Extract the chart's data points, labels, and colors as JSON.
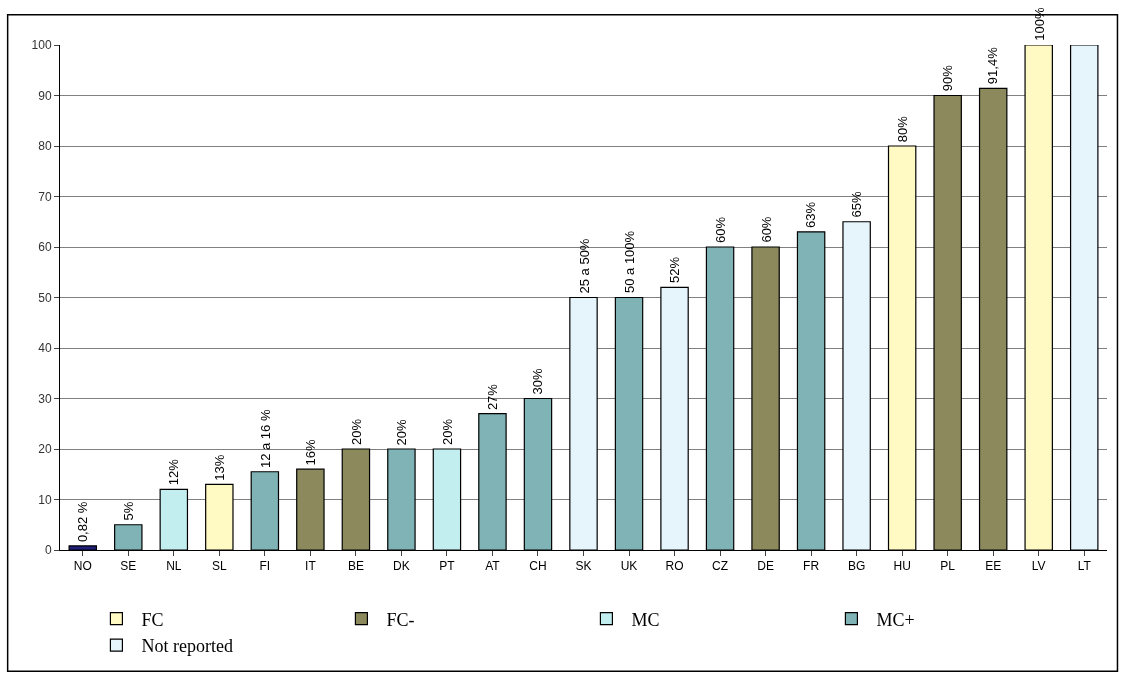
{
  "chart_data": {
    "type": "bar",
    "categories": [
      "NO",
      "SE",
      "NL",
      "SL",
      "FI",
      "IT",
      "BE",
      "DK",
      "PT",
      "AT",
      "CH",
      "SK",
      "UK",
      "RO",
      "CZ",
      "DE",
      "FR",
      "BG",
      "HU",
      "PL",
      "EE",
      "LV",
      "LT"
    ],
    "series": [
      {
        "color": "#1f1f7a",
        "values": [
          0.82,
          null,
          null,
          null,
          null,
          null,
          null,
          null,
          null,
          null,
          null,
          null,
          null,
          null,
          null,
          null,
          null,
          null,
          null,
          null,
          null,
          null,
          null
        ],
        "value_labels": [
          "0,82 %",
          null,
          null,
          null,
          null,
          null,
          null,
          null,
          null,
          null,
          null,
          null,
          null,
          null,
          null,
          null,
          null,
          null,
          null,
          null,
          null,
          null,
          null
        ]
      },
      {
        "name": "FC",
        "color": "#fff9c4",
        "values": [
          null,
          null,
          null,
          13,
          null,
          null,
          null,
          null,
          null,
          null,
          null,
          null,
          null,
          null,
          null,
          null,
          null,
          null,
          80,
          null,
          null,
          100,
          null
        ],
        "value_labels": [
          null,
          null,
          null,
          "13%",
          null,
          null,
          null,
          null,
          null,
          null,
          null,
          null,
          null,
          null,
          null,
          null,
          null,
          null,
          "80%",
          null,
          null,
          "100%",
          null
        ]
      },
      {
        "name": "FC-",
        "color": "#8c8a5c",
        "values": [
          null,
          null,
          null,
          null,
          null,
          16,
          20,
          null,
          null,
          null,
          null,
          null,
          null,
          null,
          null,
          60,
          null,
          null,
          null,
          90,
          91.4,
          null,
          null
        ],
        "value_labels": [
          null,
          null,
          null,
          null,
          null,
          "16%",
          "20%",
          null,
          null,
          null,
          null,
          null,
          null,
          null,
          null,
          "60%",
          null,
          null,
          null,
          "90%",
          "91,4%",
          null,
          null
        ]
      },
      {
        "name": "MC",
        "color": "#c2eef0",
        "values": [
          null,
          null,
          12,
          null,
          null,
          null,
          null,
          null,
          20,
          null,
          null,
          null,
          null,
          null,
          null,
          null,
          null,
          null,
          null,
          null,
          null,
          null,
          null
        ],
        "value_labels": [
          null,
          null,
          "12%",
          null,
          null,
          null,
          null,
          null,
          "20%",
          null,
          null,
          null,
          null,
          null,
          null,
          null,
          null,
          null,
          null,
          null,
          null,
          null,
          null
        ]
      },
      {
        "name": "MC+",
        "color": "#7fb3b5",
        "values": [
          null,
          5,
          null,
          null,
          15.5,
          null,
          null,
          20,
          null,
          27,
          30,
          null,
          50,
          null,
          60,
          null,
          63,
          null,
          null,
          null,
          null,
          null,
          null
        ],
        "value_labels": [
          null,
          "5%",
          null,
          null,
          "12 a 16 %",
          null,
          null,
          "20%",
          null,
          "27%",
          "30%",
          null,
          "50 a 100%",
          null,
          "60%",
          null,
          "63%",
          null,
          null,
          null,
          null,
          null,
          null
        ]
      },
      {
        "name": "Not reported",
        "color": "#e6f4fc",
        "values": [
          null,
          null,
          null,
          null,
          null,
          null,
          null,
          null,
          null,
          null,
          null,
          50,
          null,
          52,
          null,
          null,
          null,
          65,
          null,
          null,
          null,
          null,
          100
        ],
        "value_labels": [
          null,
          null,
          null,
          null,
          null,
          null,
          null,
          null,
          null,
          null,
          null,
          "25 a 50%",
          null,
          "52%",
          null,
          null,
          null,
          "65%",
          null,
          null,
          null,
          null,
          null
        ]
      }
    ],
    "ylim": [
      0,
      100
    ],
    "yticks": [
      0,
      10,
      20,
      30,
      40,
      50,
      60,
      70,
      80,
      90,
      100
    ],
    "grid": "y",
    "legend": "bottom"
  }
}
